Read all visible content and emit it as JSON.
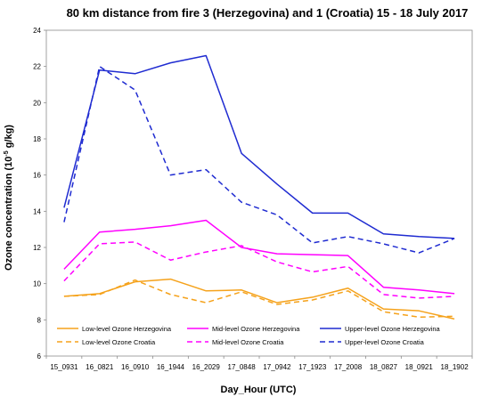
{
  "chart_data": {
    "type": "line",
    "title": "80 km distance from fire 3 (Herzegovina) and 1 (Croatia) 15 - 18 July  2017",
    "xlabel": "Day_Hour (UTC)",
    "ylabel_main": "Ozone concentration (10",
    "ylabel_sup": "-5",
    "ylabel_unit": " g/kg)",
    "ylim": [
      6,
      24
    ],
    "yticks": [
      6,
      8,
      10,
      12,
      14,
      16,
      18,
      20,
      22,
      24
    ],
    "grid": false,
    "legend_position": "bottom-inside",
    "categories": [
      "15_0931",
      "16_0821",
      "16_0910",
      "16_1944",
      "16_2029",
      "17_0848",
      "17_0942",
      "17_1923",
      "17_2008",
      "18_0827",
      "18_0921",
      "18_1902"
    ],
    "series": [
      {
        "name": "Low-level Ozone Herzegovina",
        "color": "#f5a21b",
        "dash": "solid",
        "values": [
          9.3,
          9.45,
          10.1,
          10.25,
          9.6,
          9.65,
          8.95,
          9.25,
          9.75,
          8.6,
          8.5,
          8.05
        ]
      },
      {
        "name": "Mid-level Ozone Herzegovina",
        "color": "#ff00ff",
        "dash": "solid",
        "values": [
          10.8,
          12.85,
          13.0,
          13.2,
          13.5,
          12.0,
          11.65,
          11.6,
          11.55,
          9.8,
          9.65,
          9.45
        ]
      },
      {
        "name": "Upper-level Ozone Herzegovina",
        "color": "#1f2bd1",
        "dash": "solid",
        "values": [
          14.2,
          21.8,
          21.6,
          22.2,
          22.6,
          17.2,
          15.5,
          13.9,
          13.9,
          12.75,
          12.6,
          12.5
        ]
      },
      {
        "name": "Low-level Ozone Croatia",
        "color": "#f5a21b",
        "dash": "dashed",
        "values": [
          9.3,
          9.4,
          10.2,
          9.4,
          8.95,
          9.55,
          8.85,
          9.1,
          9.6,
          8.45,
          8.15,
          8.2
        ]
      },
      {
        "name": "Mid-level Ozone Croatia",
        "color": "#ff00ff",
        "dash": "dashed",
        "values": [
          10.15,
          12.2,
          12.3,
          11.3,
          11.75,
          12.1,
          11.2,
          10.65,
          10.95,
          9.4,
          9.2,
          9.3
        ]
      },
      {
        "name": "Upper-level Ozone Croatia",
        "color": "#1f2bd1",
        "dash": "dashed",
        "values": [
          13.4,
          22.0,
          20.7,
          16.0,
          16.3,
          14.5,
          13.8,
          12.25,
          12.6,
          12.2,
          11.7,
          12.5
        ]
      }
    ]
  }
}
